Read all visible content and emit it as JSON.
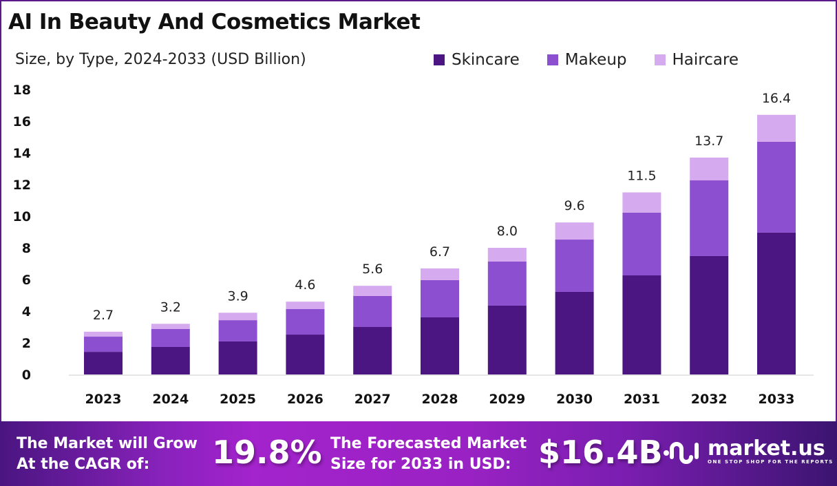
{
  "header": {
    "title": "AI In Beauty And Cosmetics Market",
    "subtitle": "Size, by Type, 2024-2033 (USD Billion)"
  },
  "chart_data": {
    "type": "bar",
    "stacked": true,
    "categories": [
      "2023",
      "2024",
      "2025",
      "2026",
      "2027",
      "2028",
      "2029",
      "2030",
      "2031",
      "2032",
      "2033"
    ],
    "series": [
      {
        "name": "Skincare",
        "color": "#4b1582",
        "values": [
          1.43,
          1.74,
          2.09,
          2.52,
          3.0,
          3.61,
          4.35,
          5.22,
          6.26,
          7.48,
          8.96
        ]
      },
      {
        "name": "Makeup",
        "color": "#8c4fd0",
        "values": [
          0.96,
          1.13,
          1.34,
          1.61,
          1.96,
          2.35,
          2.78,
          3.3,
          3.96,
          4.78,
          5.74
        ]
      },
      {
        "name": "Haircare",
        "color": "#d6aaee",
        "values": [
          0.31,
          0.33,
          0.47,
          0.47,
          0.64,
          0.74,
          0.87,
          1.08,
          1.28,
          1.44,
          1.7
        ]
      }
    ],
    "totals": [
      "2.7",
      "3.2",
      "3.9",
      "4.6",
      "5.6",
      "6.7",
      "8.0",
      "9.6",
      "11.5",
      "13.7",
      "16.4"
    ],
    "yticks": [
      "0",
      "2",
      "4",
      "6",
      "8",
      "10",
      "12",
      "14",
      "16",
      "18"
    ],
    "ylim": [
      0,
      18
    ],
    "grid": false,
    "legend": "top-right"
  },
  "footer": {
    "cagr_label_1": "The Market will Grow",
    "cagr_label_2": "At the CAGR of:",
    "cagr_value": "19.8%",
    "forecast_label_1": "The Forecasted Market",
    "forecast_label_2": "Size for 2033 in USD:",
    "forecast_value": "$16.4B",
    "logo_name": "market.us",
    "logo_tagline": "ONE STOP SHOP FOR THE REPORTS"
  }
}
